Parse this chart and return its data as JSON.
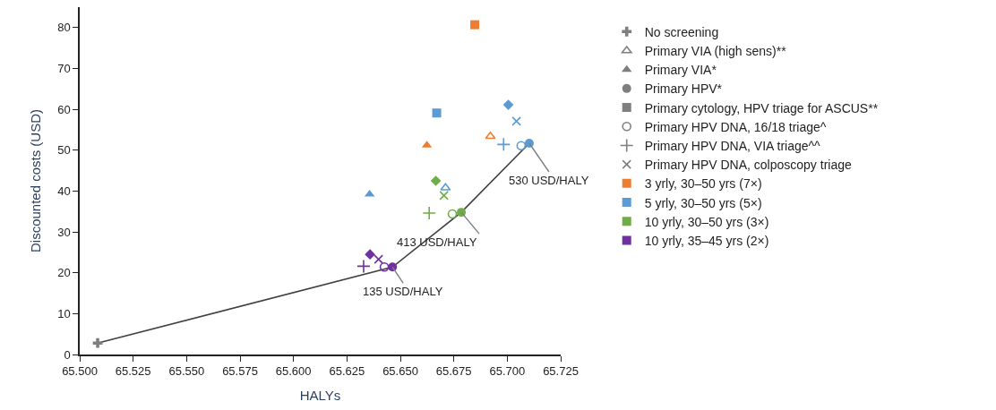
{
  "chart_data": {
    "type": "scatter",
    "xlabel": "HALYs",
    "ylabel": "Discounted costs (USD)",
    "xlim": [
      65.5,
      65.725
    ],
    "xticks": [
      {
        "value": 65.5,
        "label": "65.500"
      },
      {
        "value": 65.525,
        "label": "65.525"
      },
      {
        "value": 65.55,
        "label": "65.550"
      },
      {
        "value": 65.575,
        "label": "65.575"
      },
      {
        "value": 65.6,
        "label": "65.600"
      },
      {
        "value": 65.625,
        "label": "65.625"
      },
      {
        "value": 65.65,
        "label": "65.650"
      },
      {
        "value": 65.675,
        "label": "65.675"
      },
      {
        "value": 65.7,
        "label": "65.700"
      },
      {
        "value": 65.725,
        "label": "65.725"
      }
    ],
    "ylim": [
      0,
      85
    ],
    "yticks": [
      0,
      10,
      20,
      30,
      40,
      50,
      60,
      70,
      80
    ],
    "legend": "right",
    "series": [
      {
        "type": "line",
        "color": "#404040",
        "marker": "none",
        "x": [
          65.5084,
          65.6463,
          65.6785,
          65.7103
        ],
        "values": [
          2.8,
          21.4,
          34.8,
          51.7
        ]
      },
      {
        "name": "No screening",
        "color": "#7f7f7f",
        "marker": "cross",
        "x": [
          65.5084
        ],
        "values": [
          2.8
        ]
      },
      {
        "marker": "triangle-open",
        "x": [
          65.6921,
          65.6711
        ],
        "values": [
          53.4,
          40.8
        ],
        "colors": [
          "#ed7d31",
          "#5b9bd5"
        ]
      },
      {
        "marker": "triangle",
        "x": [
          65.6624,
          65.6356
        ],
        "values": [
          51.2,
          39.2
        ],
        "colors": [
          "#ed7d31",
          "#5b9bd5"
        ]
      },
      {
        "marker": "circle",
        "x": [
          65.7103,
          65.6785,
          65.6463
        ],
        "values": [
          51.7,
          34.8,
          21.4
        ],
        "colors": [
          "#5b9bd5",
          "#70ad47",
          "#7030a0"
        ]
      },
      {
        "marker": "square",
        "x": [
          65.6848,
          65.667
        ],
        "values": [
          80.7,
          59.1
        ],
        "colors": [
          "#ed7d31",
          "#5b9bd5"
        ]
      },
      {
        "marker": "circle-open",
        "x": [
          65.7065,
          65.6743,
          65.6425
        ],
        "values": [
          51.1,
          34.4,
          21.4
        ],
        "colors": [
          "#5b9bd5",
          "#70ad47",
          "#7030a0"
        ]
      },
      {
        "marker": "plus",
        "x": [
          65.6983,
          65.6635,
          65.6328
        ],
        "values": [
          51.4,
          34.6,
          21.6
        ],
        "colors": [
          "#5b9bd5",
          "#70ad47",
          "#7030a0"
        ]
      },
      {
        "marker": "x",
        "x": [
          65.7043,
          65.6704,
          65.6398
        ],
        "values": [
          57.1,
          38.9,
          23.3
        ],
        "colors": [
          "#5b9bd5",
          "#70ad47",
          "#7030a0"
        ]
      },
      {
        "marker": "diamond",
        "x": [
          65.7005,
          65.6666,
          65.6358
        ],
        "values": [
          61.1,
          42.5,
          24.5
        ],
        "colors": [
          "#5b9bd5",
          "#70ad47",
          "#7030a0"
        ]
      },
      {
        "name": "Primary VIA (high sens)**",
        "color": "#7f7f7f",
        "marker": "triangle-open"
      },
      {
        "name": "Primary VIA*",
        "color": "#7f7f7f",
        "marker": "triangle"
      },
      {
        "name": "Primary HPV*",
        "color": "#7f7f7f",
        "marker": "circle"
      },
      {
        "name": "Primary cytology, HPV triage for ASCUS**",
        "color": "#7f7f7f",
        "marker": "square"
      },
      {
        "name": "Primary HPV DNA, 16/18 triage^",
        "color": "#7f7f7f",
        "marker": "circle-open"
      },
      {
        "name": "Primary HPV DNA, VIA triage^^",
        "color": "#7f7f7f",
        "marker": "plus"
      },
      {
        "name": "Primary HPV DNA, colposcopy triage",
        "color": "#7f7f7f",
        "marker": "x"
      },
      {
        "name": "3 yrly, 30–50 yrs (7×)",
        "color": "#ed7d31",
        "marker": "square"
      },
      {
        "name": "5 yrly, 30–50 yrs (5×)",
        "color": "#5b9bd5",
        "marker": "square"
      },
      {
        "name": "10 yrly, 30–50 yrs (3×)",
        "color": "#70ad47",
        "marker": "square"
      },
      {
        "name": "10 yrly, 35–45 yrs (2×)",
        "color": "#7030a0",
        "marker": "square"
      }
    ],
    "annotations": [
      {
        "text": "135 USD/HALY",
        "x": 65.6463,
        "y": 21.4
      },
      {
        "text": "413 USD/HALY",
        "x": 65.6785,
        "y": 34.8
      },
      {
        "text": "530 USD/HALY",
        "x": 65.7103,
        "y": 51.7
      }
    ]
  }
}
